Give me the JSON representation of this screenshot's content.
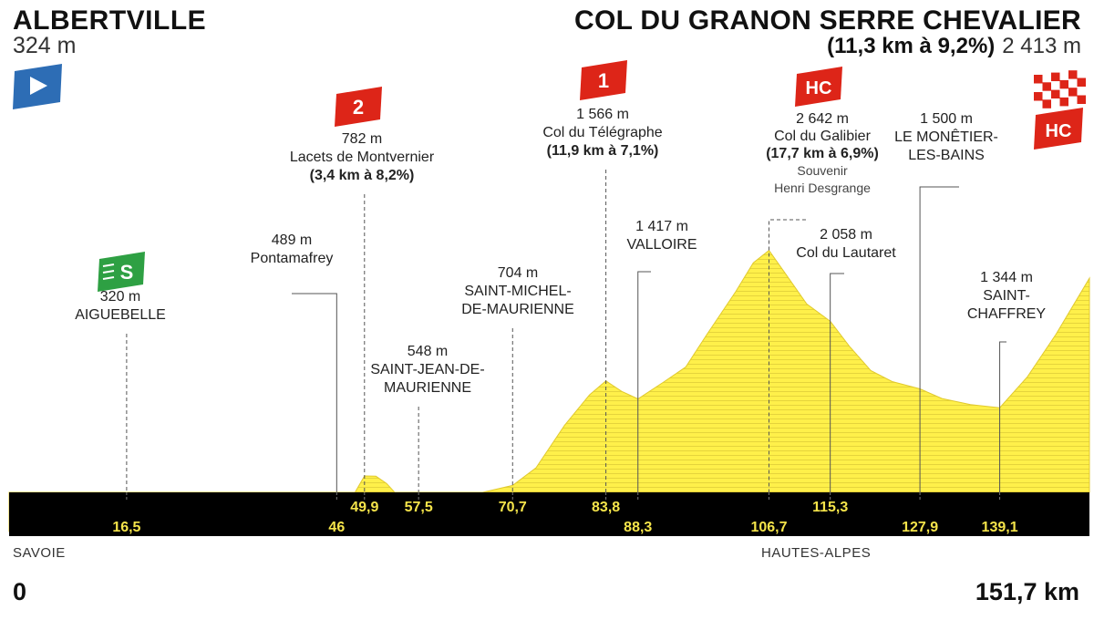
{
  "header": {
    "start_name": "ALBERTVILLE",
    "start_altitude": "324 m",
    "finish_name": "COL DU GRANON SERRE CHEVALIER",
    "finish_climb": "(11,3 km à 9,2%)",
    "finish_altitude": "2 413 m",
    "start_icon": "start-flag-icon",
    "finish_icon": "checkered-flag-icon"
  },
  "footer": {
    "region_left": "SAVOIE",
    "region_right": "HAUTES-ALPES",
    "km_start": "0",
    "km_end": "151,7 km"
  },
  "colors": {
    "profile_fill": "#fff04a",
    "profile_stripe": "#e5d43c",
    "axis_band": "#000000",
    "km_label": "#f5e44a",
    "cat_badge": "#dd2518",
    "sprint_badge": "#2ea043",
    "start_flag": "#2d6db5"
  },
  "chart_data": {
    "type": "area",
    "xlabel": "",
    "ylabel": "",
    "x_unit": "km",
    "y_unit": "m",
    "xlim": [
      0,
      151.7
    ],
    "ylim": [
      0,
      2700
    ],
    "profile": [
      [
        0,
        324
      ],
      [
        10,
        326
      ],
      [
        16.5,
        320
      ],
      [
        25,
        360
      ],
      [
        35,
        410
      ],
      [
        42,
        450
      ],
      [
        46,
        489
      ],
      [
        48.5,
        640
      ],
      [
        49.9,
        782
      ],
      [
        51.5,
        780
      ],
      [
        53,
        720
      ],
      [
        55.5,
        560
      ],
      [
        57.5,
        548
      ],
      [
        62,
        600
      ],
      [
        66,
        640
      ],
      [
        70.7,
        704
      ],
      [
        74,
        850
      ],
      [
        78,
        1200
      ],
      [
        81.5,
        1450
      ],
      [
        83.8,
        1566
      ],
      [
        86,
        1480
      ],
      [
        88.3,
        1417
      ],
      [
        92,
        1560
      ],
      [
        95,
        1680
      ],
      [
        98,
        1950
      ],
      [
        102,
        2300
      ],
      [
        104.5,
        2540
      ],
      [
        106.7,
        2642
      ],
      [
        109,
        2450
      ],
      [
        112,
        2200
      ],
      [
        115.3,
        2058
      ],
      [
        118,
        1850
      ],
      [
        121,
        1650
      ],
      [
        124,
        1560
      ],
      [
        127.9,
        1500
      ],
      [
        131,
        1420
      ],
      [
        135,
        1370
      ],
      [
        139.1,
        1344
      ],
      [
        143,
        1600
      ],
      [
        147,
        1950
      ],
      [
        151.7,
        2413
      ]
    ],
    "km_markers": [
      {
        "km": 16.5,
        "label": "16,5",
        "row": 2
      },
      {
        "km": 46,
        "label": "46",
        "row": 2
      },
      {
        "km": 49.9,
        "label": "49,9",
        "row": 1
      },
      {
        "km": 57.5,
        "label": "57,5",
        "row": 1
      },
      {
        "km": 70.7,
        "label": "70,7",
        "row": 1
      },
      {
        "km": 83.8,
        "label": "83,8",
        "row": 1
      },
      {
        "km": 88.3,
        "label": "88,3",
        "row": 2
      },
      {
        "km": 106.7,
        "label": "106,7",
        "row": 2
      },
      {
        "km": 115.3,
        "label": "115,3",
        "row": 1
      },
      {
        "km": 127.9,
        "label": "127,9",
        "row": 2
      },
      {
        "km": 139.1,
        "label": "139,1",
        "row": 2
      }
    ],
    "annotations": [
      {
        "km": 16.5,
        "lines": [
          "320 m",
          "AIGUEBELLE"
        ],
        "bold_lines": [],
        "badge": "sprint-icon",
        "badge_text": "S"
      },
      {
        "km": 46,
        "lines": [
          "489 m",
          "Pontamafrey"
        ],
        "bold_lines": []
      },
      {
        "km": 49.9,
        "lines": [
          "782 m",
          "Lacets de Montvernier",
          "(3,4 km à 8,2%)"
        ],
        "bold_lines": [
          2
        ],
        "badge": "category-badge",
        "badge_text": "2"
      },
      {
        "km": 57.5,
        "lines": [
          "548 m",
          "SAINT-JEAN-DE-",
          "MAURIENNE"
        ],
        "bold_lines": []
      },
      {
        "km": 70.7,
        "lines": [
          "704 m",
          "SAINT-MICHEL-",
          "DE-MAURIENNE"
        ],
        "bold_lines": []
      },
      {
        "km": 83.8,
        "lines": [
          "1 566 m",
          "Col du Télégraphe",
          "(11,9 km à 7,1%)"
        ],
        "bold_lines": [
          2
        ],
        "badge": "category-badge",
        "badge_text": "1"
      },
      {
        "km": 88.3,
        "lines": [
          "1 417 m",
          "VALLOIRE"
        ],
        "bold_lines": []
      },
      {
        "km": 106.7,
        "lines": [
          "2 642 m",
          "Col du Galibier",
          "(17,7 km à 6,9%)",
          "Souvenir",
          "Henri Desgrange"
        ],
        "bold_lines": [
          2
        ],
        "badge": "category-badge",
        "badge_text": "HC"
      },
      {
        "km": 115.3,
        "lines": [
          "2 058 m",
          "Col du Lautaret"
        ],
        "bold_lines": []
      },
      {
        "km": 127.9,
        "lines": [
          "1 500 m",
          "LE MONÊTIER-",
          "LES-BAINS"
        ],
        "bold_lines": []
      },
      {
        "km": 139.1,
        "lines": [
          "1 344 m",
          "SAINT-",
          "CHAFFREY"
        ],
        "bold_lines": []
      }
    ],
    "finish_badge_text": "HC"
  }
}
